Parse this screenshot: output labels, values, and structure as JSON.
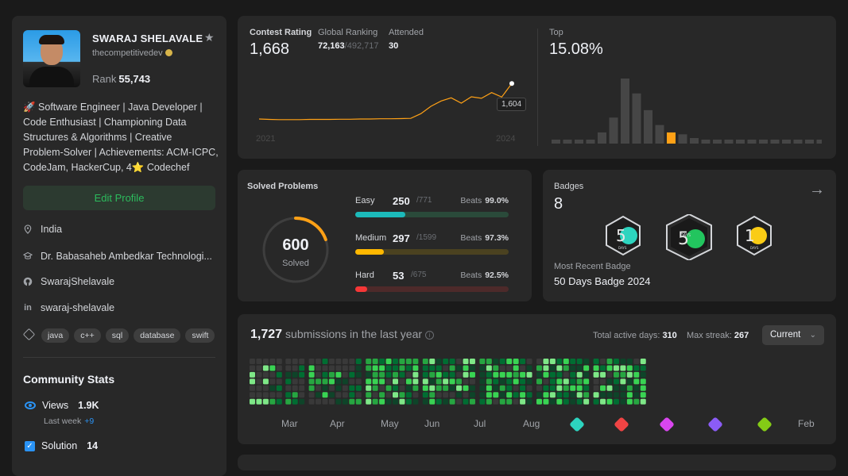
{
  "profile": {
    "name": "SWARAJ SHELAVALE",
    "username": "thecompetitivedev",
    "rank_label": "Rank",
    "rank_value": "55,743",
    "bio_lines": [
      "🚀 Software Engineer | Java Developer |",
      "Code Enthusiast | Championing Data",
      "Structures & Algorithms | Creative",
      "Problem-Solver | Achievements: ACM-ICPC,",
      "CodeJam, HackerCup, 4⭐ Codechef"
    ],
    "edit_label": "Edit Profile",
    "location": "India",
    "school": "Dr. Babasaheb Ambedkar Technologi...",
    "github": "SwarajShelavale",
    "linkedin": "swaraj-shelavale",
    "skills": [
      "java",
      "c++",
      "sql",
      "database",
      "swift"
    ],
    "community": {
      "title": "Community Stats",
      "views_label": "Views",
      "views_value": "1.9K",
      "last_week_label": "Last week",
      "last_week_value": "+9",
      "solution_label": "Solution",
      "solution_value": "14"
    }
  },
  "contest": {
    "rating_label": "Contest Rating",
    "rating_value": "1,668",
    "global_label": "Global Ranking",
    "global_value": "72,163",
    "global_total": "/492,717",
    "attended_label": "Attended",
    "attended_value": "30",
    "tooltip": "1,604",
    "year_start": "2021",
    "year_end": "2024",
    "top_label": "Top",
    "top_value": "15.08%",
    "rating_history": [
      1500,
      1498,
      1497,
      1497,
      1497,
      1498,
      1498,
      1498,
      1499,
      1499,
      1500,
      1500,
      1501,
      1501,
      1502,
      1503,
      1525,
      1560,
      1585,
      1600,
      1575,
      1605,
      1598,
      1625,
      1604,
      1668
    ],
    "distribution": [
      1,
      1,
      1,
      2,
      6,
      14,
      35,
      27,
      18,
      10,
      6,
      5,
      3,
      2,
      2,
      2,
      2,
      2,
      2,
      2,
      2,
      2,
      2,
      2
    ],
    "highlight_index": 10
  },
  "solved": {
    "title": "Solved Problems",
    "total": "600",
    "total_label": "Solved",
    "total_num": 600,
    "total_questions": 3045,
    "easy": {
      "label": "Easy",
      "value": "250",
      "total": "/771",
      "beats_label": "Beats",
      "beats": "99.0%",
      "solved": 250,
      "out_of": 771,
      "color": "#1cbaba",
      "track": "#2a4a3a"
    },
    "medium": {
      "label": "Medium",
      "value": "297",
      "total": "/1599",
      "beats_label": "Beats",
      "beats": "97.3%",
      "solved": 297,
      "out_of": 1599,
      "color": "#ffb800",
      "track": "#4b4220"
    },
    "hard": {
      "label": "Hard",
      "value": "53",
      "total": "/675",
      "beats_label": "Beats",
      "beats": "92.5%",
      "solved": 53,
      "out_of": 675,
      "color": "#f63737",
      "track": "#4d2a2a"
    }
  },
  "badges": {
    "label": "Badges",
    "count": "8",
    "recent_label": "Most Recent Badge",
    "recent_name": "50 Days Badge 2024",
    "items": [
      {
        "name": "50-days-badge",
        "main": "5",
        "sub": "DAYS",
        "color": "#2dd4bf"
      },
      {
        "name": "50-days-badge-2024",
        "main": "5",
        "sub": "DAYS",
        "color": "#22c55e"
      },
      {
        "name": "100-days-badge",
        "main": "1",
        "sub": "DAYS",
        "color": "#facc15"
      }
    ]
  },
  "submissions": {
    "count": "1,727",
    "label": "submissions in the last year",
    "active_label": "Total active days:",
    "active_value": "310",
    "streak_label": "Max streak:",
    "streak_value": "267",
    "selector": "Current",
    "months": [
      "Mar",
      "Apr",
      "May",
      "Jun",
      "Jul",
      "Aug",
      "Feb"
    ],
    "badge_colors": [
      "#2dd4bf",
      "#ef4444",
      "#d946ef",
      "#8b5cf6",
      "#84cc16"
    ]
  }
}
